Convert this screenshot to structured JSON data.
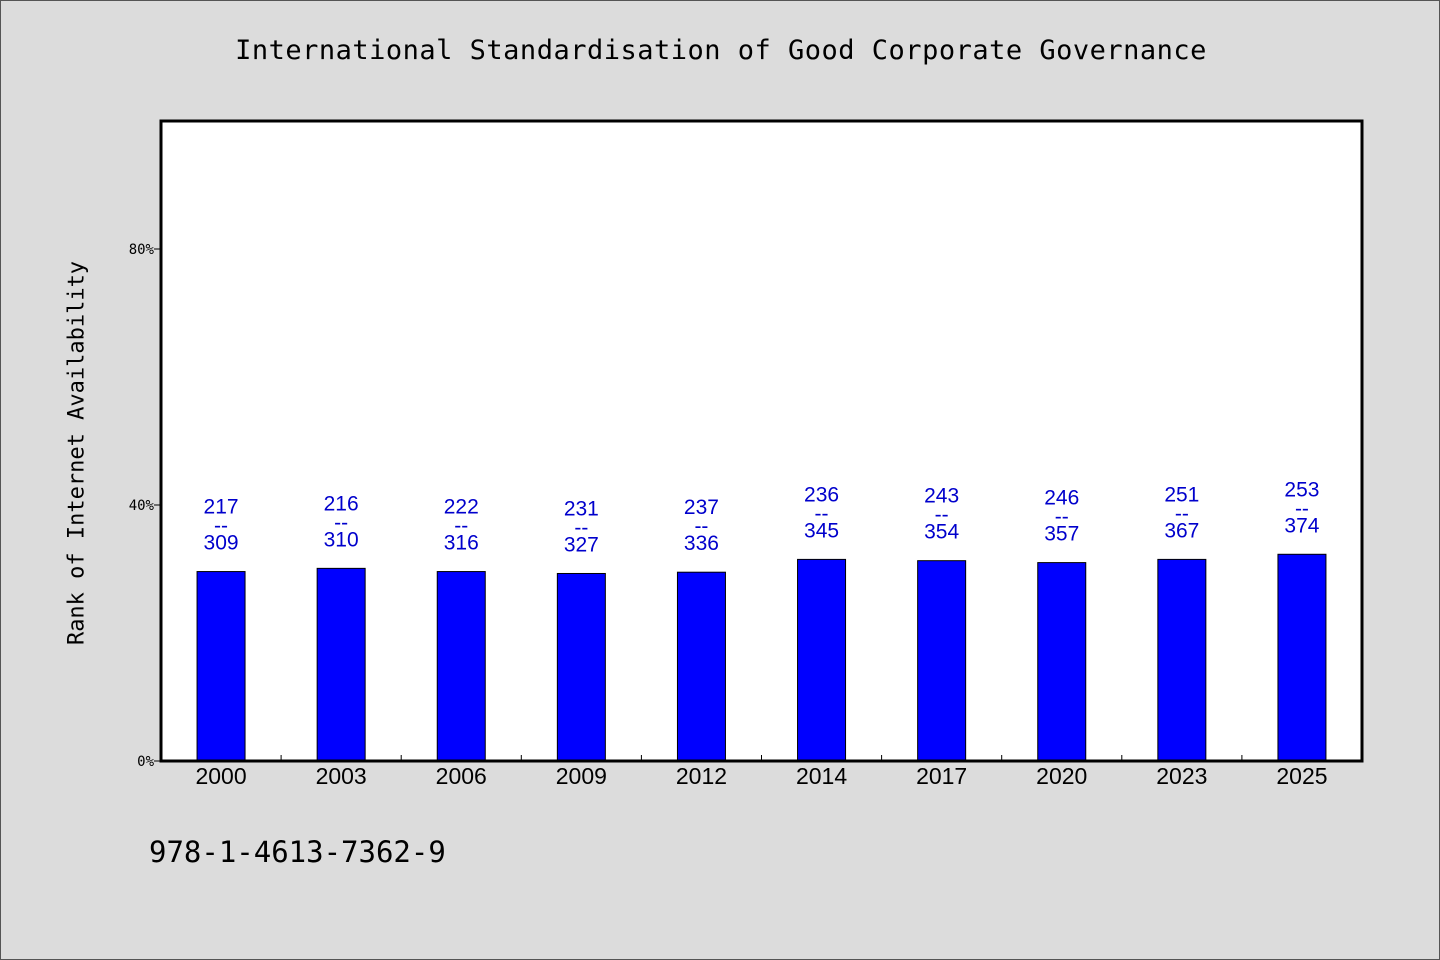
{
  "chart_data": {
    "type": "bar",
    "title": "International Standardisation of Good Corporate Governance",
    "xlabel": "",
    "ylabel": "Rank of Internet Availability",
    "ylim": [
      0,
      100
    ],
    "yticks": [
      0,
      40,
      80
    ],
    "ytick_labels": [
      "0%",
      "40%",
      "80%"
    ],
    "grid": false,
    "categories": [
      "2000",
      "2003",
      "2006",
      "2009",
      "2012",
      "2014",
      "2017",
      "2020",
      "2023",
      "2025"
    ],
    "values": [
      29.6,
      30.1,
      29.6,
      29.3,
      29.5,
      31.5,
      31.3,
      31.0,
      31.5,
      32.3
    ],
    "data_labels": [
      {
        "top": "217",
        "sep": "--",
        "bottom": "309"
      },
      {
        "top": "216",
        "sep": "--",
        "bottom": "310"
      },
      {
        "top": "222",
        "sep": "--",
        "bottom": "316"
      },
      {
        "top": "231",
        "sep": "--",
        "bottom": "327"
      },
      {
        "top": "237",
        "sep": "--",
        "bottom": "336"
      },
      {
        "top": "236",
        "sep": "--",
        "bottom": "345"
      },
      {
        "top": "243",
        "sep": "--",
        "bottom": "354"
      },
      {
        "top": "246",
        "sep": "--",
        "bottom": "357"
      },
      {
        "top": "251",
        "sep": "--",
        "bottom": "367"
      },
      {
        "top": "253",
        "sep": "--",
        "bottom": "374"
      }
    ],
    "bar_color": "#0000ff",
    "label_color": "#0000cc",
    "plot_background": "#ffffff",
    "page_background": "#dcdcdc"
  },
  "footnote": "978-1-4613-7362-9"
}
